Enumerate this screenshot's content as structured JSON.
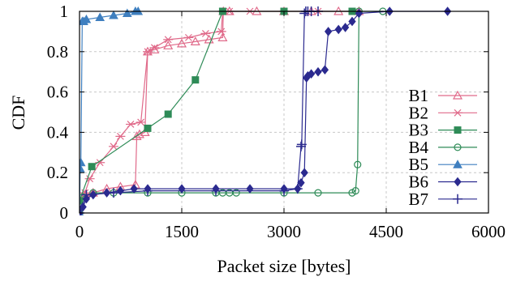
{
  "chart_data": {
    "type": "line",
    "title": "",
    "xlabel": "Packet size [bytes]",
    "ylabel": "CDF",
    "xlim": [
      0,
      6000
    ],
    "ylim": [
      0,
      1
    ],
    "xticks": [
      "0",
      "1500",
      "3000",
      "4500",
      "6000"
    ],
    "yticks": [
      "0",
      "0.2",
      "0.4",
      "0.6",
      "0.8",
      "1"
    ],
    "grid": true,
    "legend_position": "right",
    "series": [
      {
        "name": "B1",
        "color": "#e06a8a",
        "marker": "triangle-open",
        "x": [
          0,
          80,
          200,
          400,
          600,
          820,
          840,
          880,
          960,
          1000,
          1100,
          1300,
          1500,
          1700,
          1900,
          2100,
          2110,
          2200,
          2600,
          3000,
          3400,
          3800,
          4100
        ],
        "y": [
          0.06,
          0.09,
          0.1,
          0.12,
          0.13,
          0.14,
          0.38,
          0.39,
          0.4,
          0.8,
          0.81,
          0.83,
          0.84,
          0.85,
          0.86,
          0.87,
          1.0,
          1.0,
          1.0,
          1.0,
          1.0,
          1.0,
          1.0
        ]
      },
      {
        "name": "B2",
        "color": "#e06a8a",
        "marker": "star",
        "x": [
          0,
          80,
          150,
          300,
          500,
          600,
          750,
          900,
          1000,
          1100,
          1300,
          1600,
          1850,
          2080,
          2100,
          2200,
          2500,
          3000,
          3500,
          4000
        ],
        "y": [
          0.07,
          0.1,
          0.17,
          0.25,
          0.33,
          0.38,
          0.44,
          0.45,
          0.8,
          0.82,
          0.86,
          0.87,
          0.89,
          0.9,
          1.0,
          1.0,
          1.0,
          1.0,
          1.0,
          1.0
        ]
      },
      {
        "name": "B3",
        "color": "#2e8b57",
        "marker": "square-filled",
        "x": [
          0,
          180,
          1000,
          1300,
          1700,
          2100,
          3000,
          4000
        ],
        "y": [
          0.06,
          0.23,
          0.42,
          0.49,
          0.66,
          1.0,
          1.0,
          1.0
        ]
      },
      {
        "name": "B4",
        "color": "#2e8b57",
        "marker": "circle-open",
        "x": [
          0,
          50,
          200,
          500,
          1000,
          1500,
          2000,
          2100,
          2200,
          2300,
          3000,
          3500,
          4000,
          4050,
          4080,
          4100,
          4450
        ],
        "y": [
          0.0,
          0.08,
          0.1,
          0.1,
          0.1,
          0.1,
          0.1,
          0.1,
          0.1,
          0.1,
          0.1,
          0.1,
          0.1,
          0.11,
          0.24,
          1.0,
          1.0
        ]
      },
      {
        "name": "B5",
        "color": "#3f7fbf",
        "marker": "triangle-filled",
        "x": [
          0,
          10,
          20,
          40,
          60,
          100,
          300,
          500,
          700,
          820,
          860
        ],
        "y": [
          0.0,
          0.22,
          0.25,
          0.95,
          0.95,
          0.96,
          0.97,
          0.98,
          0.99,
          1.0,
          1.0
        ]
      },
      {
        "name": "B6",
        "color": "#2b2a8f",
        "marker": "diamond-filled",
        "x": [
          0,
          50,
          100,
          200,
          400,
          600,
          800,
          1000,
          1500,
          2000,
          2500,
          3000,
          3200,
          3250,
          3300,
          3330,
          3350,
          3400,
          3500,
          3600,
          3650,
          3800,
          3900,
          4000,
          4100,
          4550,
          5400
        ],
        "y": [
          0.0,
          0.03,
          0.07,
          0.09,
          0.1,
          0.11,
          0.12,
          0.12,
          0.12,
          0.12,
          0.12,
          0.12,
          0.12,
          0.15,
          0.2,
          0.67,
          0.68,
          0.69,
          0.7,
          0.71,
          0.9,
          0.91,
          0.92,
          0.95,
          0.99,
          1.0,
          1.0
        ]
      },
      {
        "name": "B7",
        "color": "#2b2a8f",
        "marker": "plus",
        "x": [
          0,
          100,
          500,
          1000,
          2000,
          3000,
          3200,
          3250,
          3260,
          3300,
          3320,
          3350,
          3400,
          3500
        ],
        "y": [
          0.0,
          0.09,
          0.1,
          0.11,
          0.11,
          0.11,
          0.12,
          0.33,
          0.34,
          0.99,
          1.0,
          1.0,
          1.0,
          1.0
        ]
      }
    ]
  }
}
